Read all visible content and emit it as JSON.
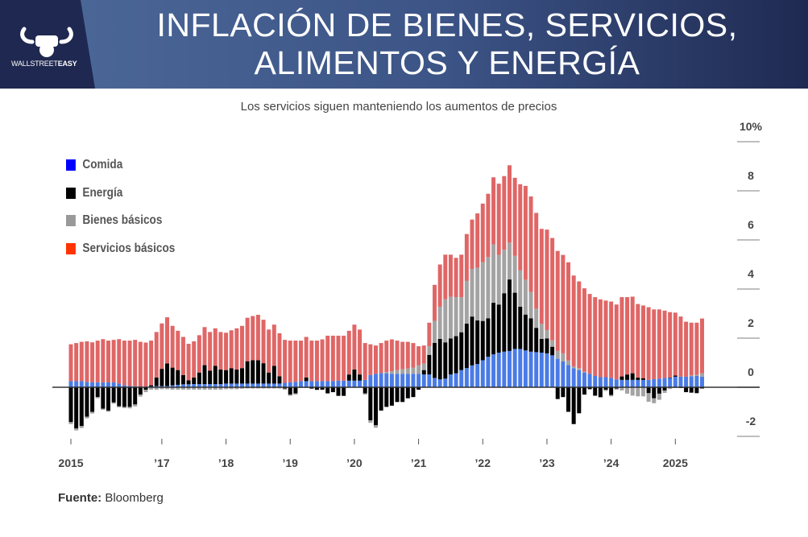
{
  "header": {
    "title_line1": "INFLACIÓN DE BIENES, SERVICIOS,",
    "title_line2": "ALIMENTOS Y ENERGÍA",
    "logo_text_light": "WALLSTREET",
    "logo_text_bold": "EASY"
  },
  "footer": {
    "source_label": "Fuente:",
    "source_value": "Bloomberg"
  },
  "chart_data": {
    "type": "bar",
    "stacked": true,
    "title": "Los servicios siguen manteniendo los aumentos de precios",
    "xlabel": "",
    "ylabel": "",
    "ylim": [
      -2.5,
      10
    ],
    "y_ticks": [
      {
        "value": 10,
        "label": "10%"
      },
      {
        "value": 8,
        "label": "8"
      },
      {
        "value": 6,
        "label": "6"
      },
      {
        "value": 4,
        "label": "4"
      },
      {
        "value": 2,
        "label": "2"
      },
      {
        "value": 0,
        "label": "0"
      },
      {
        "value": -2,
        "label": "-2"
      }
    ],
    "x_ticks": [
      {
        "category": "2015-08",
        "label": "2015"
      },
      {
        "category": "2017-01",
        "label": "’17"
      },
      {
        "category": "2018-01",
        "label": "’18"
      },
      {
        "category": "2019-01",
        "label": "’19"
      },
      {
        "category": "2020-01",
        "label": "’20"
      },
      {
        "category": "2021-01",
        "label": "’21"
      },
      {
        "category": "2022-01",
        "label": "’22"
      },
      {
        "category": "2023-01",
        "label": "’23"
      },
      {
        "category": "2024-01",
        "label": "’24"
      },
      {
        "category": "2025-01",
        "label": "2025"
      }
    ],
    "grid": false,
    "legend_position": "top-left",
    "categories": [
      "2015-08",
      "2015-09",
      "2015-10",
      "2015-11",
      "2015-12",
      "2016-01",
      "2016-02",
      "2016-03",
      "2016-04",
      "2016-05",
      "2016-06",
      "2016-07",
      "2016-08",
      "2016-09",
      "2016-10",
      "2016-11",
      "2016-12",
      "2017-01",
      "2017-02",
      "2017-03",
      "2017-04",
      "2017-05",
      "2017-06",
      "2017-07",
      "2017-08",
      "2017-09",
      "2017-10",
      "2017-11",
      "2017-12",
      "2018-01",
      "2018-02",
      "2018-03",
      "2018-04",
      "2018-05",
      "2018-06",
      "2018-07",
      "2018-08",
      "2018-09",
      "2018-10",
      "2018-11",
      "2018-12",
      "2019-01",
      "2019-02",
      "2019-03",
      "2019-04",
      "2019-05",
      "2019-06",
      "2019-07",
      "2019-08",
      "2019-09",
      "2019-10",
      "2019-11",
      "2019-12",
      "2020-01",
      "2020-02",
      "2020-03",
      "2020-04",
      "2020-05",
      "2020-06",
      "2020-07",
      "2020-08",
      "2020-09",
      "2020-10",
      "2020-11",
      "2020-12",
      "2021-01",
      "2021-02",
      "2021-03",
      "2021-04",
      "2021-05",
      "2021-06",
      "2021-07",
      "2021-08",
      "2021-09",
      "2021-10",
      "2021-11",
      "2021-12",
      "2022-01",
      "2022-02",
      "2022-03",
      "2022-04",
      "2022-05",
      "2022-06",
      "2022-07",
      "2022-08",
      "2022-09",
      "2022-10",
      "2022-11",
      "2022-12",
      "2023-01",
      "2023-02",
      "2023-03",
      "2023-04",
      "2023-05",
      "2023-06",
      "2023-07",
      "2023-08",
      "2023-09",
      "2023-10",
      "2023-11",
      "2023-12",
      "2024-01",
      "2024-02",
      "2024-03",
      "2024-04",
      "2024-05",
      "2024-06",
      "2024-07",
      "2024-08",
      "2024-09",
      "2024-10",
      "2024-11",
      "2024-12",
      "2025-01",
      "2025-02",
      "2025-03",
      "2025-04",
      "2025-05",
      "2025-06"
    ],
    "series": [
      {
        "name": "Comida",
        "color": "#0000ff",
        "bar_color": "#4a7be6",
        "values": [
          0.25,
          0.25,
          0.25,
          0.22,
          0.2,
          0.2,
          0.2,
          0.2,
          0.2,
          0.15,
          0.08,
          0.05,
          0.04,
          0.03,
          0.03,
          0.03,
          0.05,
          0.05,
          0.05,
          0.08,
          0.1,
          0.12,
          0.12,
          0.13,
          0.13,
          0.13,
          0.13,
          0.13,
          0.13,
          0.15,
          0.15,
          0.15,
          0.15,
          0.15,
          0.15,
          0.15,
          0.15,
          0.15,
          0.15,
          0.15,
          0.18,
          0.2,
          0.22,
          0.25,
          0.25,
          0.25,
          0.25,
          0.25,
          0.25,
          0.25,
          0.27,
          0.27,
          0.27,
          0.27,
          0.27,
          0.3,
          0.5,
          0.55,
          0.58,
          0.57,
          0.55,
          0.55,
          0.55,
          0.55,
          0.55,
          0.55,
          0.52,
          0.52,
          0.38,
          0.32,
          0.35,
          0.52,
          0.57,
          0.7,
          0.78,
          0.89,
          0.95,
          1.1,
          1.24,
          1.34,
          1.41,
          1.45,
          1.48,
          1.56,
          1.56,
          1.5,
          1.45,
          1.43,
          1.41,
          1.38,
          1.3,
          1.16,
          1.05,
          0.91,
          0.78,
          0.7,
          0.59,
          0.55,
          0.46,
          0.41,
          0.41,
          0.38,
          0.32,
          0.3,
          0.3,
          0.3,
          0.3,
          0.3,
          0.3,
          0.33,
          0.35,
          0.38,
          0.38,
          0.43,
          0.43,
          0.43,
          0.45,
          0.46,
          0.43
        ]
      },
      {
        "name": "Energía",
        "color": "#000000",
        "bar_color": "#000000",
        "values": [
          -1.42,
          -1.68,
          -1.58,
          -1.2,
          -1.0,
          -0.4,
          -0.87,
          -0.95,
          -0.62,
          -0.77,
          -0.8,
          -0.8,
          -0.7,
          -0.3,
          -0.1,
          0.05,
          0.35,
          0.7,
          0.92,
          0.72,
          0.6,
          0.38,
          0.16,
          0.27,
          0.47,
          0.77,
          0.55,
          0.74,
          0.59,
          0.55,
          0.63,
          0.57,
          0.63,
          0.91,
          0.95,
          0.95,
          0.83,
          0.45,
          0.72,
          0.3,
          -0.05,
          -0.3,
          -0.25,
          0.0,
          0.15,
          -0.05,
          -0.1,
          -0.1,
          -0.25,
          -0.2,
          -0.35,
          -0.35,
          0.25,
          0.45,
          0.25,
          -0.25,
          -1.35,
          -1.55,
          -0.95,
          -0.8,
          -0.75,
          -0.6,
          -0.6,
          -0.45,
          -0.4,
          -0.1,
          0.18,
          0.8,
          1.43,
          1.65,
          1.48,
          1.47,
          1.51,
          1.54,
          1.81,
          1.99,
          1.77,
          1.6,
          1.57,
          2.1,
          1.96,
          2.38,
          2.91,
          2.29,
          1.72,
          1.46,
          1.36,
          0.99,
          0.56,
          0.61,
          0.35,
          -0.48,
          -0.4,
          -1.0,
          -1.5,
          -1.06,
          -0.3,
          -0.08,
          -0.34,
          -0.4,
          -0.1,
          -0.32,
          -0.05,
          0.14,
          0.22,
          0.27,
          0.09,
          0.07,
          -0.24,
          -0.45,
          -0.26,
          -0.13,
          0.02,
          0.05,
          -0.03,
          -0.2,
          -0.22,
          -0.24,
          -0.05
        ]
      },
      {
        "name": "Bienes básicos",
        "color": "#999999",
        "bar_color": "#a3a3a3",
        "values": [
          -0.08,
          -0.08,
          -0.08,
          -0.07,
          -0.07,
          -0.05,
          -0.05,
          -0.05,
          -0.05,
          -0.05,
          -0.05,
          -0.06,
          -0.08,
          -0.08,
          -0.1,
          -0.1,
          -0.1,
          -0.08,
          -0.08,
          -0.1,
          -0.1,
          -0.1,
          -0.1,
          -0.1,
          -0.1,
          -0.1,
          -0.1,
          -0.1,
          -0.1,
          -0.08,
          -0.08,
          -0.08,
          -0.06,
          -0.05,
          -0.05,
          -0.05,
          -0.05,
          -0.05,
          -0.05,
          -0.05,
          -0.05,
          -0.05,
          -0.05,
          -0.03,
          -0.03,
          -0.02,
          -0.02,
          0.0,
          0.0,
          0.0,
          0.0,
          0.0,
          0.0,
          -0.02,
          -0.02,
          -0.05,
          -0.1,
          -0.1,
          0.0,
          0.05,
          0.1,
          0.15,
          0.18,
          0.22,
          0.25,
          0.34,
          0.27,
          0.35,
          0.89,
          1.31,
          1.75,
          1.7,
          1.59,
          1.43,
          1.74,
          1.94,
          2.15,
          2.39,
          2.49,
          2.38,
          2.02,
          1.77,
          1.5,
          1.5,
          1.48,
          1.42,
          1.07,
          0.78,
          0.62,
          0.34,
          0.26,
          0.32,
          0.33,
          0.18,
          0.06,
          0.08,
          0.05,
          0.0,
          -0.02,
          -0.03,
          -0.05,
          -0.05,
          -0.05,
          -0.13,
          -0.26,
          -0.34,
          -0.37,
          -0.37,
          -0.35,
          -0.2,
          -0.25,
          -0.1,
          -0.07,
          -0.03,
          0.0,
          0.0,
          0.03,
          0.05,
          0.14
        ]
      },
      {
        "name": "Servicios básicos",
        "color": "#ff3300",
        "bar_color": "#e06666",
        "values": [
          1.5,
          1.55,
          1.6,
          1.65,
          1.63,
          1.7,
          1.76,
          1.7,
          1.73,
          1.81,
          1.82,
          1.85,
          1.89,
          1.82,
          1.79,
          1.82,
          1.85,
          1.85,
          1.88,
          1.7,
          1.6,
          1.55,
          1.49,
          1.47,
          1.52,
          1.55,
          1.57,
          1.53,
          1.53,
          1.52,
          1.54,
          1.68,
          1.72,
          1.77,
          1.8,
          1.85,
          1.77,
          1.75,
          1.68,
          1.75,
          1.75,
          1.7,
          1.68,
          1.65,
          1.65,
          1.65,
          1.65,
          1.7,
          1.85,
          1.85,
          1.83,
          1.83,
          1.78,
          1.83,
          1.83,
          1.5,
          1.25,
          1.15,
          1.22,
          1.28,
          1.3,
          1.2,
          1.12,
          1.08,
          1.0,
          0.78,
          0.73,
          0.96,
          1.47,
          1.72,
          1.82,
          1.71,
          1.6,
          1.73,
          1.91,
          2.01,
          2.21,
          2.39,
          2.58,
          2.73,
          2.9,
          3.0,
          3.15,
          3.18,
          3.51,
          3.82,
          3.89,
          3.9,
          3.86,
          4.09,
          4.17,
          4.07,
          4.01,
          4.0,
          3.71,
          3.53,
          3.39,
          3.25,
          3.21,
          3.17,
          3.12,
          3.11,
          3.05,
          3.23,
          3.15,
          3.12,
          3.0,
          2.96,
          2.96,
          2.84,
          2.82,
          2.74,
          2.66,
          2.56,
          2.45,
          2.24,
          2.15,
          2.12,
          2.23
        ]
      }
    ]
  }
}
